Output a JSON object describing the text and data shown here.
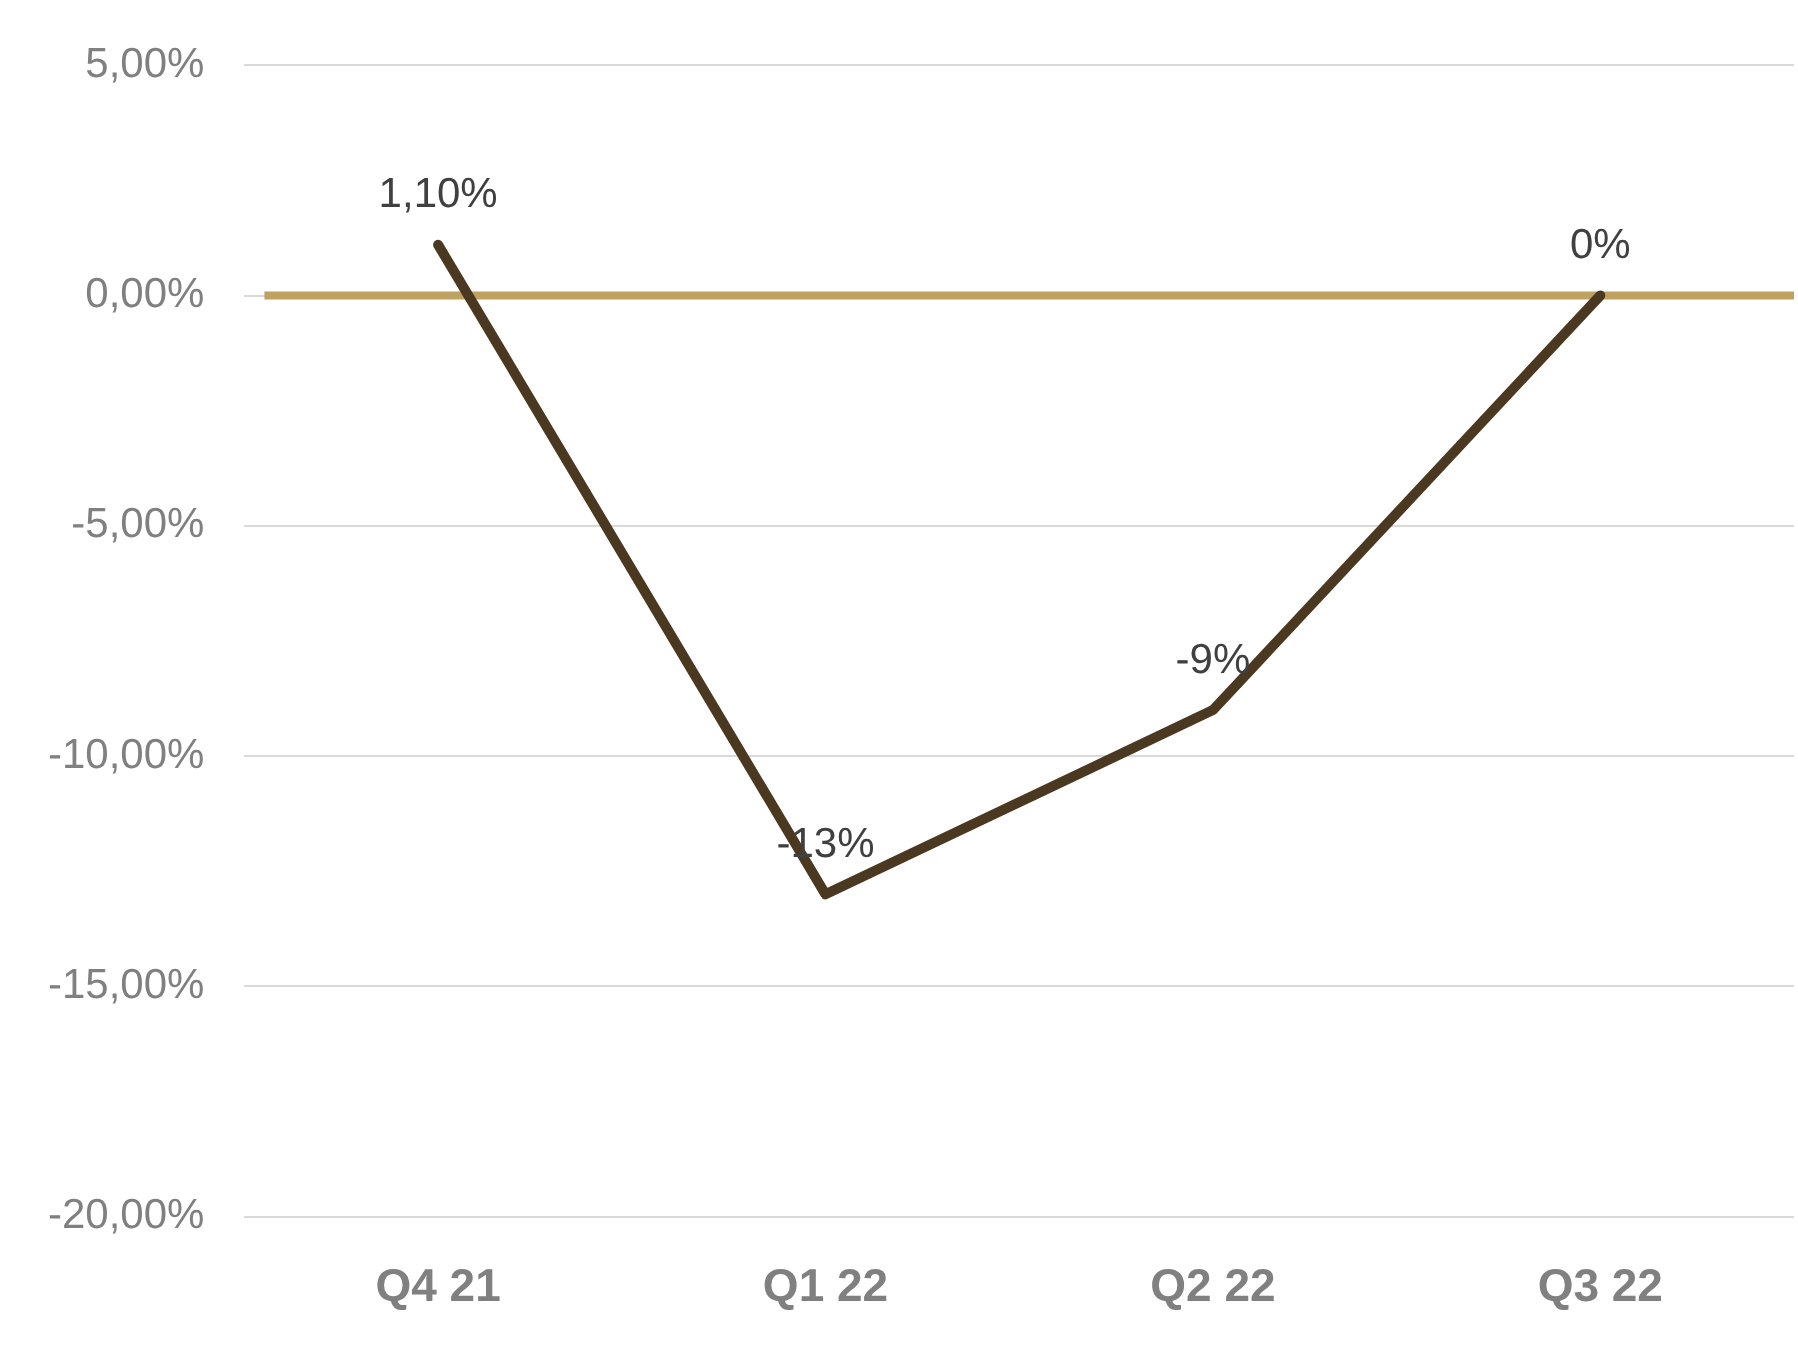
{
  "chart_data": {
    "type": "line",
    "categories": [
      "Q4 21",
      "Q1 22",
      "Q2 22",
      "Q3 22"
    ],
    "series": [
      {
        "color": "#4b3820",
        "values": [
          1.1,
          -13,
          -9,
          0
        ],
        "value_labels": [
          "1,10%",
          "-13%",
          "-9%",
          "0%"
        ]
      }
    ],
    "ylim": [
      -20,
      5
    ],
    "yticks": [
      {
        "value": -20,
        "label": "-20,00%"
      },
      {
        "value": -15,
        "label": "-15,00%"
      },
      {
        "value": -10,
        "label": "-10,00%"
      },
      {
        "value": -5,
        "label": "-5,00%"
      },
      {
        "value": 0,
        "label": "0,00%"
      },
      {
        "value": 5,
        "label": "5,00%"
      }
    ],
    "ref_lines": [
      {
        "axis": "y",
        "value": 0,
        "color": "#bfa162"
      }
    ],
    "grid": "y",
    "legend": false,
    "marker": "none",
    "line_style": "solid"
  }
}
